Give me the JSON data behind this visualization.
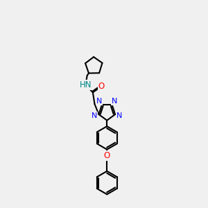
{
  "bg": "#f0f0f0",
  "bc": "#000000",
  "bw": 1.5,
  "nc": "#0000ff",
  "oc": "#ff0000",
  "hc": "#008888",
  "fs": 8.0,
  "xlim": [
    0,
    10
  ],
  "ylim": [
    0,
    14
  ],
  "figsize": [
    3.0,
    3.0
  ],
  "dpi": 100
}
